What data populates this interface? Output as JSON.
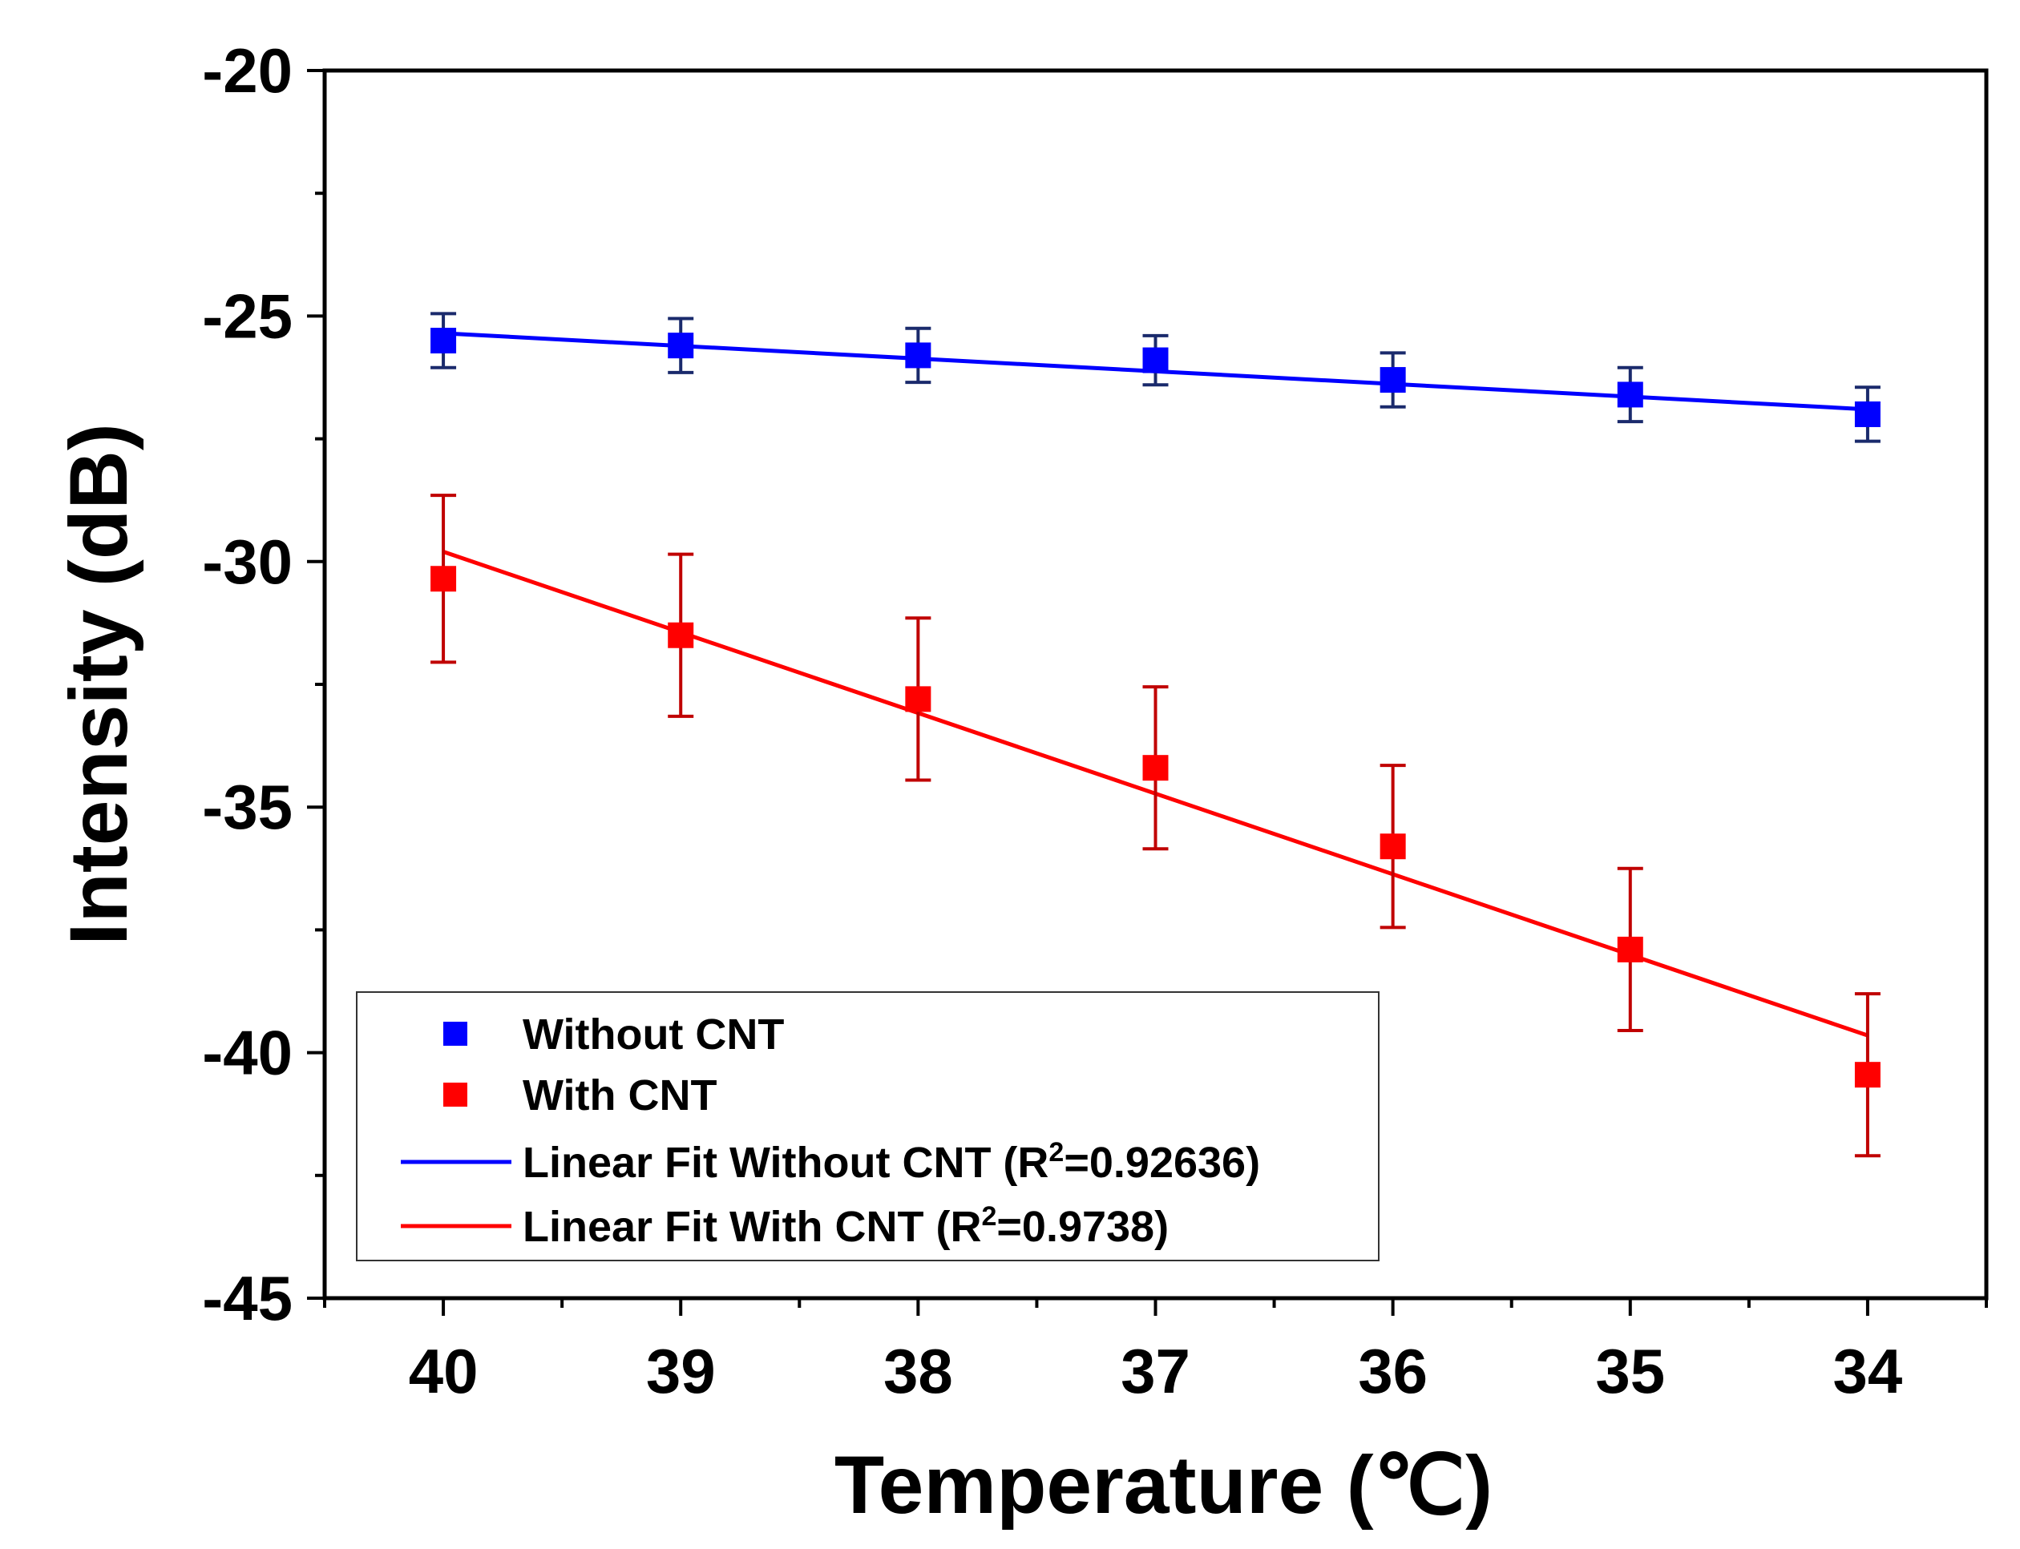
{
  "chart_data": {
    "type": "scatter",
    "title": "",
    "xlabel": "Temperature (℃)",
    "ylabel": "Intensity (dB)",
    "xlim": [
      40.5,
      33.5
    ],
    "ylim": [
      -45,
      -20
    ],
    "x_ticks": [
      40,
      39,
      38,
      37,
      36,
      35,
      34
    ],
    "x_tick_labels": [
      "40",
      "39",
      "38",
      "37",
      "36",
      "35",
      "34"
    ],
    "y_ticks": [
      -20,
      -25,
      -30,
      -35,
      -40,
      -45
    ],
    "y_tick_labels": [
      "-20",
      "-25",
      "-30",
      "-35",
      "-40",
      "-45"
    ],
    "x_minor_ticks": [
      40.5,
      39.5,
      38.5,
      37.5,
      36.5,
      35.5,
      34.5,
      33.5
    ],
    "y_minor_ticks": [
      -22.5,
      -27.5,
      -32.5,
      -37.5,
      -42.5
    ],
    "grid": false,
    "legend_position": "bottom-left",
    "series": [
      {
        "name": "Without CNT",
        "color": "#0000ff",
        "errorbar_color": "#1a2a6c",
        "x": [
          40,
          39,
          38,
          37,
          36,
          35,
          34
        ],
        "y": [
          -25.5,
          -25.6,
          -25.8,
          -25.9,
          -26.3,
          -26.6,
          -27.0
        ],
        "error": [
          0.55,
          0.55,
          0.55,
          0.5,
          0.55,
          0.55,
          0.55
        ]
      },
      {
        "name": "With CNT",
        "color": "#ff0000",
        "errorbar_color": "#c00000",
        "x": [
          40,
          39,
          38,
          37,
          36,
          35,
          34
        ],
        "y": [
          -30.35,
          -31.5,
          -32.8,
          -34.2,
          -35.8,
          -37.9,
          -40.45
        ],
        "error": [
          1.7,
          1.65,
          1.65,
          1.65,
          1.65,
          1.65,
          1.65
        ]
      }
    ],
    "fits": [
      {
        "name": "Linear Fit Without CNT (R",
        "superscript": "2",
        "suffix": "=0.92636)",
        "color": "#0000ff",
        "x": [
          40,
          34
        ],
        "y": [
          -25.35,
          -26.9
        ]
      },
      {
        "name": "Linear Fit With CNT (R",
        "superscript": "2",
        "suffix": "=0.9738)",
        "color": "#ff0000",
        "x": [
          40,
          34
        ],
        "y": [
          -29.8,
          -39.65
        ]
      }
    ]
  }
}
